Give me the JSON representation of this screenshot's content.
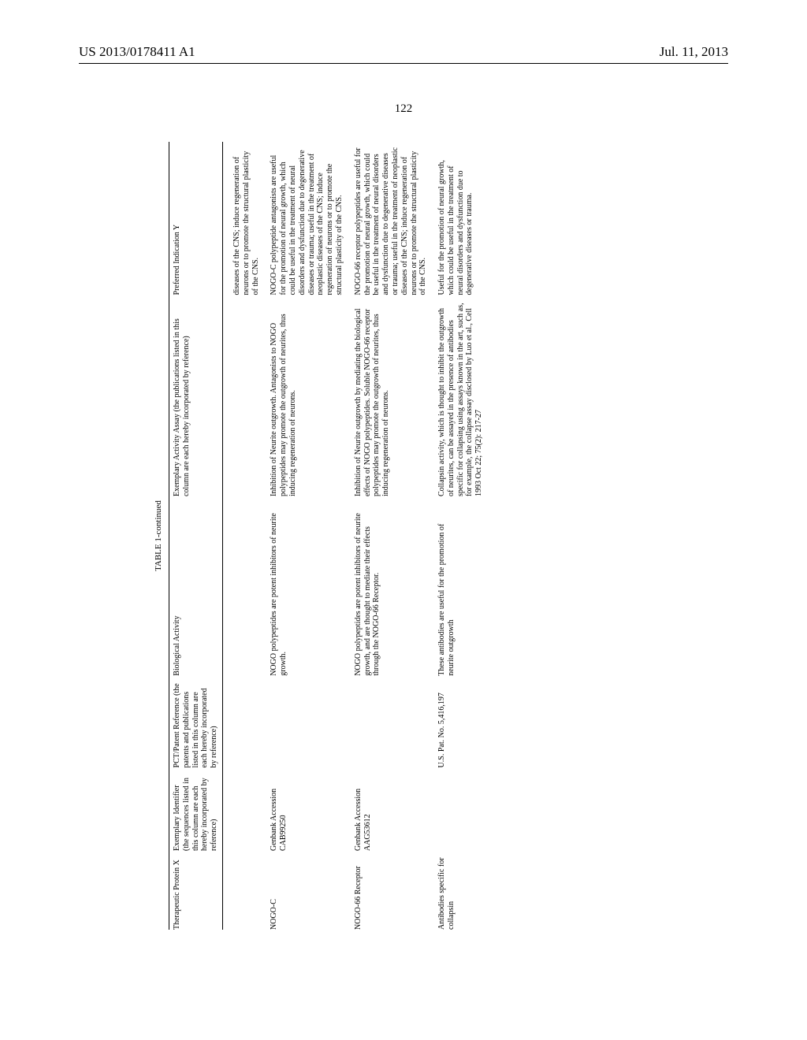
{
  "header": {
    "pub_number": "US 2013/0178411 A1",
    "pub_date": "Jul. 11, 2013"
  },
  "page_number": "122",
  "table": {
    "caption": "TABLE 1-continued",
    "columns": [
      "Therapeutic Protein X",
      "Exemplary Identifier (the sequences listed in this column are each hereby incorporated by reference)",
      "PCT/Patent Reference (the patents and publications listed in this column are each hereby incorporated by reference)",
      "Biological Activity",
      "Exemplary Activity Assay (the publications listed in this column are each hereby incorporated by reference)",
      "Preferred Indication Y"
    ],
    "rows": [
      {
        "protein": "",
        "identifier": "",
        "patent": "",
        "activity": "",
        "assay": "",
        "indication": "diseases of the CNS; induce regeneration of neurons or to promote the structural plasticity of the CNS."
      },
      {
        "protein": "NOGO-C",
        "identifier": "Genbank Accession CAB99250",
        "patent": "",
        "activity": "NOGO polypeptides are potent inhibitors of neurite growth.",
        "assay": "Inhibition of Neurite outgrowth. Antagonists to NOGO polypeptides may promote the outgrowth of neurites, thus inducing regeneration of neurons.",
        "indication": "NOGO-C polypeptide antagonists are useful for the promotion of neural growth, which could be useful in the treatment of neural disorders and dysfunction due to degenerative diseases or trauma; useful in the treatment of neoplastic diseases of the CNS; induce regeneration of neurons or to promote the structural plasticity of the CNS."
      },
      {
        "protein": "NOGO-66 Receptor",
        "identifier": "Genbank Accession AAG53612",
        "patent": "",
        "activity": "NOGO polypeptides are potent inhibitors of neurite growth, and are thought to mediate their effects through the NOGO-66 Receptor.",
        "assay": "Inhibition of Neurite outgrowth by mediating the biological effects of NOGO polypeptides. Soluble NOGO-66 receptor polypeptides may promote the outgrowth of neurites, thus inducing regeneration of neurons.",
        "indication": "NOGO-66 receptor polypeptides are useful for the promotion of neural growth, which could be useful in the treatment of neural disorders and dysfunction due to degenerative diseases or trauma; useful in the treatment of neoplastic diseases of the CNS; induce regeneration of neurons or to promote the structural plasticity of the CNS."
      },
      {
        "protein": "Antibodies specific for collapsin",
        "identifier": "",
        "patent": "U.S. Pat. No. 5,416,197",
        "activity": "These antibodies are useful for the promotion of neurite outgrowth",
        "assay": "Collapsin activity, which is thought to inhibit the outgrowth of neurites, can be assayed in the presence of antibodies specific for collapsing using assays known in the art, such as, for example, the collapse assay disclosed by Luo et al., Cell 1993 Oct 22; 75(2): 217-27",
        "indication": "Useful for the promotion of neural growth, which could be useful in the treatment of neural disorders and dysfunction due to degenerative diseases or trauma."
      }
    ]
  }
}
